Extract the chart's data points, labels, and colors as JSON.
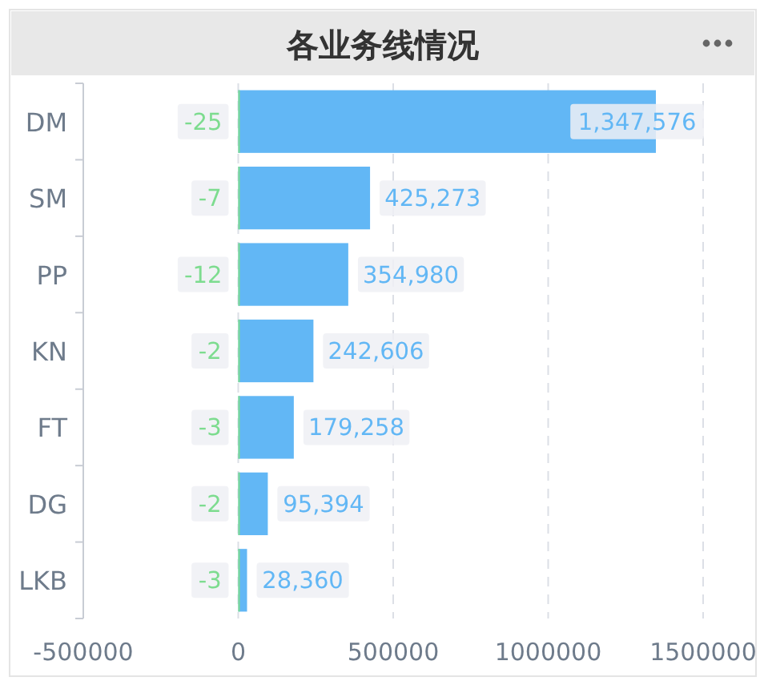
{
  "chart_data": {
    "type": "bar",
    "orientation": "horizontal",
    "title": "各业务线情况",
    "categories": [
      "DM",
      "SM",
      "PP",
      "KN",
      "FT",
      "DG",
      "LKB"
    ],
    "series": [
      {
        "color": "#62b7f5",
        "values": [
          1347576,
          425273,
          354980,
          242606,
          179258,
          95394,
          28360
        ],
        "value_labels": [
          "1,347,576",
          "425,273",
          "354,980",
          "242,606",
          "179,258",
          "95,394",
          "28,360"
        ]
      },
      {
        "color": "#7ddc8f",
        "values": [
          -25,
          -7,
          -12,
          -2,
          -3,
          -2,
          -3
        ],
        "value_labels": [
          "-25",
          "-7",
          "-12",
          "-2",
          "-3",
          "-2",
          "-3"
        ]
      }
    ],
    "xlim": [
      -500000,
      1500000
    ],
    "xticks": [
      -500000,
      0,
      500000,
      1000000,
      1500000
    ],
    "grid": "x"
  }
}
